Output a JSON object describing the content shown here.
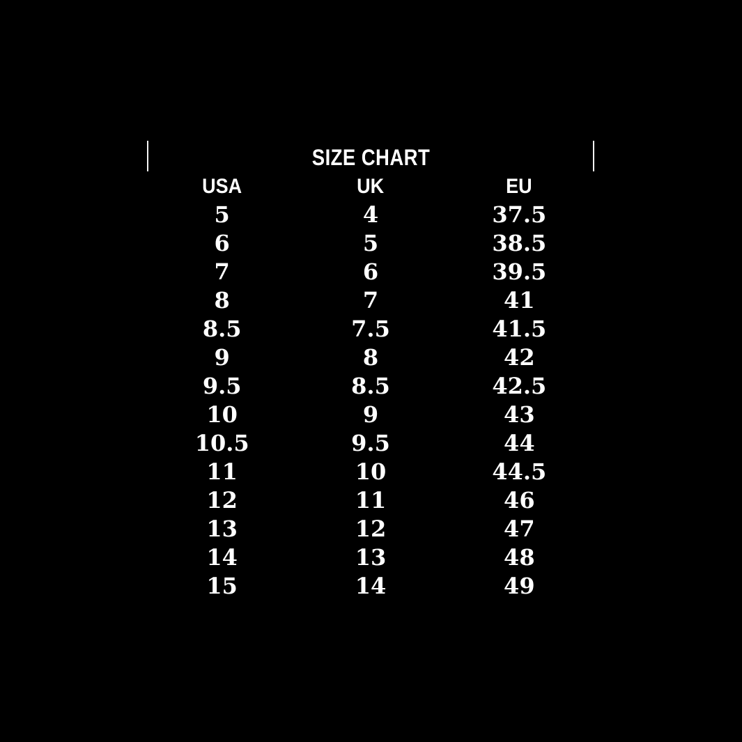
{
  "page": {
    "background_color": "#000000",
    "text_color": "#ffffff"
  },
  "chart_data": {
    "type": "table",
    "title": "SIZE CHART",
    "columns": [
      "USA",
      "UK",
      "EU"
    ],
    "rows": [
      [
        "5",
        "4",
        "37.5"
      ],
      [
        "6",
        "5",
        "38.5"
      ],
      [
        "7",
        "6",
        "39.5"
      ],
      [
        "8",
        "7",
        "41"
      ],
      [
        "8.5",
        "7.5",
        "41.5"
      ],
      [
        "9",
        "8",
        "42"
      ],
      [
        "9.5",
        "8.5",
        "42.5"
      ],
      [
        "10",
        "9",
        "43"
      ],
      [
        "10.5",
        "9.5",
        "44"
      ],
      [
        "11",
        "10",
        "44.5"
      ],
      [
        "12",
        "11",
        "46"
      ],
      [
        "13",
        "12",
        "47"
      ],
      [
        "14",
        "13",
        "48"
      ],
      [
        "15",
        "14",
        "49"
      ]
    ]
  }
}
